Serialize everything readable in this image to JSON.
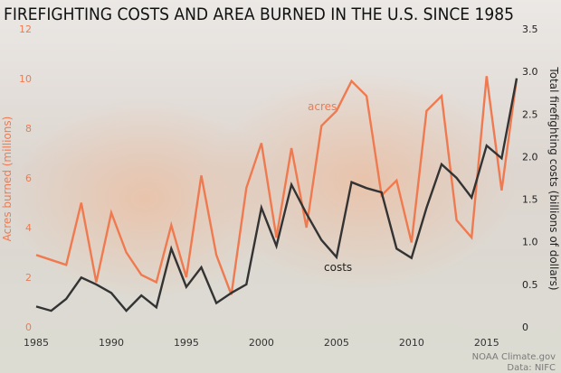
{
  "chart_data": {
    "type": "line",
    "title": "FIREFIGHTING COSTS AND AREA BURNED IN THE U.S. SINCE 1985",
    "x": [
      1985,
      1986,
      1987,
      1988,
      1989,
      1990,
      1991,
      1992,
      1993,
      1994,
      1995,
      1996,
      1997,
      1998,
      1999,
      2000,
      2001,
      2002,
      2003,
      2004,
      2005,
      2006,
      2007,
      2008,
      2009,
      2010,
      2011,
      2012,
      2013,
      2014,
      2015,
      2016,
      2017
    ],
    "x_ticks": [
      1985,
      1990,
      1995,
      2000,
      2005,
      2010,
      2015
    ],
    "x_tick_labels": [
      "1985",
      "1990",
      "1995",
      "2000",
      "2005",
      "2010",
      "2015"
    ],
    "xlim": [
      1985,
      2017
    ],
    "left_axis": {
      "label": "Acres burned (millions)",
      "ylim": [
        0,
        12
      ],
      "ticks": [
        0,
        2,
        4,
        6,
        8,
        10,
        12
      ],
      "tick_labels": [
        "0",
        "2",
        "4",
        "6",
        "8",
        "10",
        "12"
      ],
      "color": "#f07a50"
    },
    "right_axis": {
      "label": "Total firefighting costs (billions of dollars)",
      "ylim": [
        0,
        3.5
      ],
      "ticks": [
        0,
        0.5,
        1,
        1.5,
        2,
        2.5,
        3,
        3.5
      ],
      "tick_labels": [
        "0",
        "0.5",
        "1.0",
        "1.5",
        "2.0",
        "2.5",
        "3.0",
        "3.5"
      ],
      "color": "#222222"
    },
    "series": [
      {
        "name": "acres",
        "axis": "left",
        "color": "#f07a50",
        "values": [
          2.9,
          2.7,
          2.5,
          5.0,
          1.8,
          4.6,
          3.0,
          2.1,
          1.8,
          4.1,
          2.0,
          6.1,
          2.9,
          1.3,
          5.6,
          7.4,
          3.6,
          7.2,
          4.0,
          8.1,
          8.7,
          9.9,
          9.3,
          5.3,
          5.9,
          3.4,
          8.7,
          9.3,
          4.3,
          3.6,
          10.1,
          5.5,
          10.0
        ]
      },
      {
        "name": "costs",
        "axis": "right",
        "color": "#333333",
        "values": [
          0.24,
          0.19,
          0.33,
          0.58,
          0.5,
          0.4,
          0.19,
          0.37,
          0.23,
          0.92,
          0.47,
          0.7,
          0.28,
          0.4,
          0.5,
          1.4,
          0.95,
          1.67,
          1.33,
          1.02,
          0.82,
          1.7,
          1.63,
          1.58,
          0.92,
          0.81,
          1.4,
          1.91,
          1.75,
          1.52,
          2.13,
          1.98,
          2.92
        ]
      }
    ],
    "grid": false,
    "credit_line1": "NOAA Climate.gov",
    "credit_line2": "Data: NIFC"
  }
}
